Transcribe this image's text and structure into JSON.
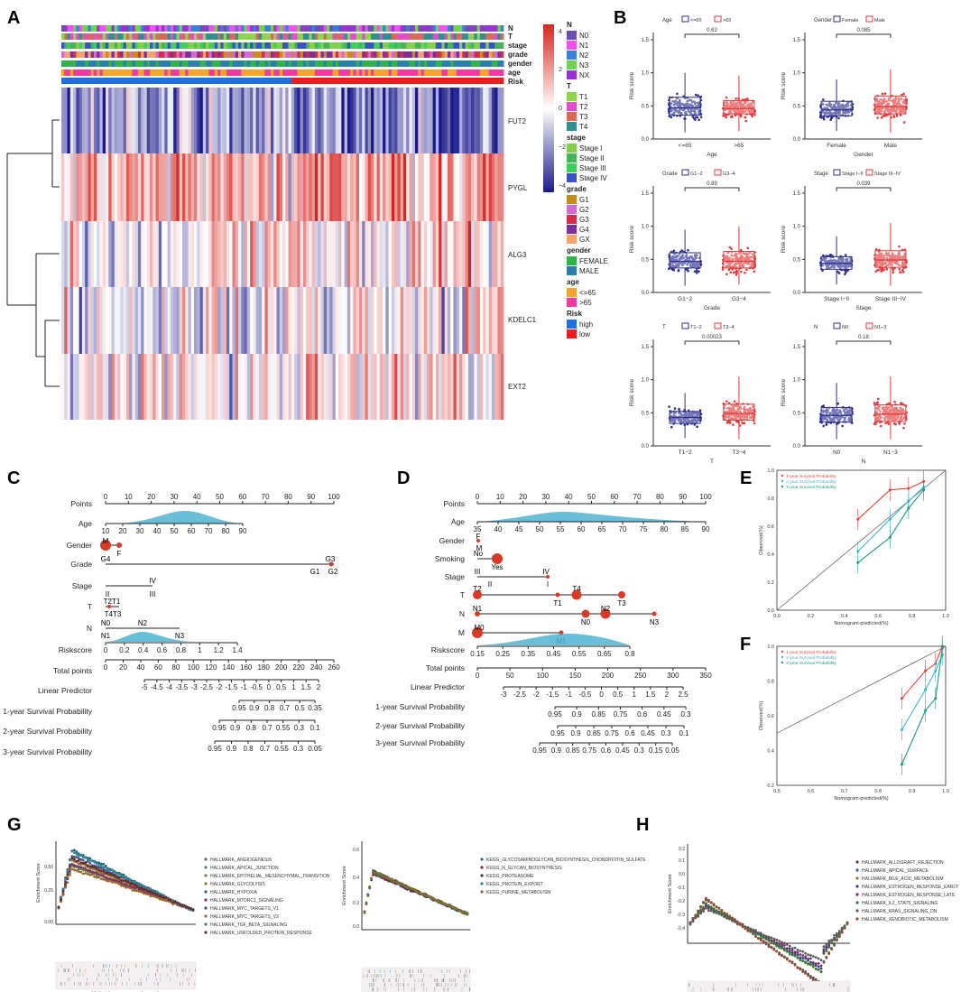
{
  "panels": {
    "A": "A",
    "B": "B",
    "C": "C",
    "D": "D",
    "E": "E",
    "F": "F",
    "G": "G",
    "H": "H"
  },
  "chart_data": [
    {
      "id": "A",
      "type": "heatmap",
      "annotation_rows": [
        "N",
        "T",
        "stage",
        "grade",
        "gender",
        "age",
        "Risk"
      ],
      "genes": [
        "FUT2",
        "PYGL",
        "ALG3",
        "KDELC1",
        "EXT2"
      ],
      "colorbar_ticks": [
        "4",
        "2",
        "0",
        "−2",
        "−4"
      ],
      "colorbar_range": [
        -4,
        4
      ],
      "legend": [
        {
          "title": "N",
          "items": [
            {
              "label": "N0",
              "color": "#6b4fb0"
            },
            {
              "label": "N1",
              "color": "#f050f0"
            },
            {
              "label": "N2",
              "color": "#3a7fd8"
            },
            {
              "label": "N3",
              "color": "#6fd34f"
            },
            {
              "label": "NX",
              "color": "#9a33d6"
            }
          ]
        },
        {
          "title": "T",
          "items": [
            {
              "label": "T1",
              "color": "#8fd34f"
            },
            {
              "label": "T2",
              "color": "#e24dcc"
            },
            {
              "label": "T3",
              "color": "#d86a5a"
            },
            {
              "label": "T4",
              "color": "#2f8f8f"
            }
          ]
        },
        {
          "title": "stage",
          "items": [
            {
              "label": "Stage I",
              "color": "#86cf4a"
            },
            {
              "label": "Stage II",
              "color": "#44b35a"
            },
            {
              "label": "Stage III",
              "color": "#3ccf5a"
            },
            {
              "label": "Stage IV",
              "color": "#3a52c8"
            }
          ]
        },
        {
          "title": "grade",
          "items": [
            {
              "label": "G1",
              "color": "#c98a1e"
            },
            {
              "label": "G2",
              "color": "#d56ad0"
            },
            {
              "label": "G3",
              "color": "#d2304a"
            },
            {
              "label": "G4",
              "color": "#7e2f9a"
            },
            {
              "label": "GX",
              "color": "#f3a46a"
            }
          ]
        },
        {
          "title": "gender",
          "items": [
            {
              "label": "FEMALE",
              "color": "#2fb34a"
            },
            {
              "label": "MALE",
              "color": "#2b7fa8"
            }
          ]
        },
        {
          "title": "age",
          "items": [
            {
              "label": "<=65",
              "color": "#f5a62a"
            },
            {
              "label": ">65",
              "color": "#f03aa0"
            }
          ]
        },
        {
          "title": "Risk",
          "items": [
            {
              "label": "high",
              "color": "#1f6fe0"
            },
            {
              "label": "low",
              "color": "#ee1c1c"
            }
          ]
        }
      ]
    },
    {
      "id": "B",
      "type": "box",
      "ylabel": "Risk score",
      "yticks": [
        "0.0",
        "0.5",
        "1.0",
        "1.5"
      ],
      "ylim": [
        0,
        1.5
      ],
      "plots": [
        {
          "title": "Age",
          "xlabel": "Age",
          "groups": [
            "<=65",
            ">65"
          ],
          "p": "0.62",
          "median": [
            0.47,
            0.46
          ],
          "q1": [
            0.36,
            0.38
          ],
          "q3": [
            0.63,
            0.58
          ],
          "lo": [
            0.1,
            0.12
          ],
          "hi": [
            1.0,
            0.96
          ]
        },
        {
          "title": "Gender",
          "xlabel": "Gender",
          "groups": [
            "Female",
            "Male"
          ],
          "p": "0.085",
          "median": [
            0.44,
            0.49
          ],
          "q1": [
            0.35,
            0.38
          ],
          "q3": [
            0.57,
            0.65
          ],
          "lo": [
            0.12,
            0.1
          ],
          "hi": [
            0.9,
            1.05
          ]
        },
        {
          "title": "Grade",
          "xlabel": "Grade",
          "groups": [
            "G1−2",
            "G3−4"
          ],
          "p": "0.89",
          "median": [
            0.47,
            0.47
          ],
          "q1": [
            0.37,
            0.37
          ],
          "q3": [
            0.6,
            0.62
          ],
          "lo": [
            0.1,
            0.12
          ],
          "hi": [
            0.95,
            1.0
          ]
        },
        {
          "title": "Stage",
          "xlabel": "Stage",
          "groups": [
            "Stage I−II",
            "Stage III−IV"
          ],
          "p": "0.039",
          "median": [
            0.44,
            0.49
          ],
          "q1": [
            0.35,
            0.38
          ],
          "q3": [
            0.54,
            0.63
          ],
          "lo": [
            0.12,
            0.1
          ],
          "hi": [
            0.85,
            1.05
          ]
        },
        {
          "title": "T",
          "xlabel": "T",
          "groups": [
            "T1−2",
            "T3−4"
          ],
          "p": "0.00023",
          "median": [
            0.43,
            0.49
          ],
          "q1": [
            0.34,
            0.39
          ],
          "q3": [
            0.52,
            0.63
          ],
          "lo": [
            0.12,
            0.1
          ],
          "hi": [
            0.8,
            1.05
          ]
        },
        {
          "title": "N",
          "xlabel": "N",
          "groups": [
            "N0",
            "N1−3"
          ],
          "p": "0.18",
          "median": [
            0.46,
            0.48
          ],
          "q1": [
            0.36,
            0.37
          ],
          "q3": [
            0.58,
            0.62
          ],
          "lo": [
            0.1,
            0.1
          ],
          "hi": [
            0.95,
            1.05
          ]
        }
      ]
    },
    {
      "id": "C",
      "type": "nomogram",
      "rows": [
        "Points",
        "Age",
        "Gender",
        "Grade",
        "Stage",
        "T",
        "N",
        "Riskscore",
        "Total points",
        "Linear Predictor",
        "1-year Survival Probability",
        "2-year Survival Probability",
        "3-year Survival Probability"
      ],
      "points_ticks": [
        "0",
        "10",
        "20",
        "30",
        "40",
        "50",
        "60",
        "70",
        "80",
        "90",
        "100"
      ],
      "age_ticks": [
        "10",
        "20",
        "30",
        "40",
        "50",
        "60",
        "70",
        "80",
        "90"
      ],
      "gender": [
        "M",
        "F"
      ],
      "grade": [
        "G4",
        "G3",
        "G1",
        "G2"
      ],
      "stage": [
        "II",
        "IV",
        "III"
      ],
      "t": [
        "T2T1",
        "T4T3"
      ],
      "n": [
        "N0",
        "N2",
        "N1",
        "N3"
      ],
      "riskscore_ticks": [
        "0",
        "0.2",
        "0.4",
        "0.6",
        "0.8",
        "1",
        "1.2",
        "1.4"
      ],
      "total_ticks": [
        "0",
        "20",
        "40",
        "60",
        "80",
        "100",
        "120",
        "140",
        "160",
        "180",
        "200",
        "220",
        "240",
        "260"
      ],
      "lp_ticks": [
        "-5",
        "-4.5",
        "-4",
        "-3.5",
        "-3",
        "-2.5",
        "-2",
        "-1.5",
        "-1",
        "-0.5",
        "0",
        "0.5",
        "1",
        "1.5",
        "2"
      ],
      "surv1": [
        "0.95",
        "0.9",
        "0.8",
        "0.7",
        "0.5",
        "0.35"
      ],
      "surv2": [
        "0.95",
        "0.9",
        "0.8",
        "0.7",
        "0.55",
        "0.3",
        "0.1"
      ],
      "surv3": [
        "0.95",
        "0.9",
        "0.8",
        "0.7",
        "0.55",
        "0.3",
        "0.05"
      ]
    },
    {
      "id": "D",
      "type": "nomogram",
      "rows": [
        "Points",
        "Age",
        "Gender",
        "Smoking",
        "Stage",
        "T",
        "N",
        "M",
        "Riskscore",
        "Total points",
        "Linear Predictor",
        "1-year Survival Probability",
        "2-year Survival Probability",
        "3-year Survival Probability"
      ],
      "points_ticks": [
        "0",
        "10",
        "20",
        "30",
        "40",
        "50",
        "60",
        "70",
        "80",
        "90",
        "100"
      ],
      "age_ticks": [
        "35",
        "40",
        "45",
        "50",
        "55",
        "60",
        "65",
        "70",
        "75",
        "80",
        "85",
        "90"
      ],
      "gender": [
        "F",
        "M"
      ],
      "smoking": [
        "No",
        "Yes"
      ],
      "stage": [
        "III",
        "IV",
        "II",
        "I"
      ],
      "t": [
        "T2",
        "T4",
        "T1",
        "T3"
      ],
      "n": [
        "N1",
        "N0",
        "N2",
        "N3"
      ],
      "m": [
        "M0",
        "M1"
      ],
      "riskscore_ticks": [
        "0.15",
        "0.25",
        "0.35",
        "0.45",
        "0.55",
        "0.65",
        "0.8"
      ],
      "total_ticks": [
        "0",
        "50",
        "100",
        "150",
        "200",
        "250",
        "300",
        "350"
      ],
      "lp_ticks": [
        "-3",
        "-2.5",
        "-2",
        "-1.5",
        "-1",
        "-0.5",
        "0",
        "0.5",
        "1",
        "1.5",
        "2",
        "2.5"
      ],
      "surv1": [
        "0.95",
        "0.9",
        "0.85",
        "0.75",
        "0.6",
        "0.45",
        "0.3"
      ],
      "surv2": [
        "0.95",
        "0.9",
        "0.85",
        "0.75",
        "0.6",
        "0.45",
        "0.3",
        "0.1"
      ],
      "surv3": [
        "0.95",
        "0.9",
        "0.85",
        "0.75",
        "0.6",
        "0.45",
        "0.3",
        "0.15",
        "0.05"
      ]
    },
    {
      "id": "E",
      "type": "line",
      "xlabel": "Nomogram-predicted(%)",
      "ylabel": "Observed(%)",
      "xticks": [
        "0.0",
        "0.2",
        "0.4",
        "0.6",
        "0.8",
        "1.0"
      ],
      "yticks": [
        "0.0",
        "0.2",
        "0.4",
        "0.6",
        "0.8",
        "1.0"
      ],
      "xlim": [
        0,
        1
      ],
      "ylim": [
        0,
        1
      ],
      "series": [
        {
          "name": "1-year Survival Probability",
          "color": "#e8453c",
          "x": [
            0.48,
            0.67,
            0.78,
            0.87
          ],
          "y": [
            0.65,
            0.86,
            0.87,
            0.92
          ]
        },
        {
          "name": "2-year Survival Probability",
          "color": "#3fb6d8",
          "x": [
            0.48,
            0.67,
            0.78,
            0.87
          ],
          "y": [
            0.42,
            0.65,
            0.78,
            0.88
          ]
        },
        {
          "name": "3-year Survival Probability",
          "color": "#1a9a7e",
          "x": [
            0.48,
            0.67,
            0.78,
            0.87
          ],
          "y": [
            0.34,
            0.52,
            0.73,
            0.86
          ]
        }
      ]
    },
    {
      "id": "F",
      "type": "line",
      "xlabel": "Nomogram-predicted(%)",
      "ylabel": "Observed(%)",
      "xticks": [
        "0.5",
        "0.6",
        "0.7",
        "0.8",
        "0.9",
        "1.0"
      ],
      "yticks": [
        "0.2",
        "0.4",
        "0.6",
        "0.8",
        "1.0"
      ],
      "xlim": [
        0.5,
        1
      ],
      "ylim": [
        0.2,
        1
      ],
      "series": [
        {
          "name": "1-year Survival Probability",
          "color": "#e8453c",
          "x": [
            0.87,
            0.94,
            0.97,
            0.99
          ],
          "y": [
            0.7,
            0.86,
            0.9,
            1.0
          ]
        },
        {
          "name": "2-year Survival Probability",
          "color": "#3fb6d8",
          "x": [
            0.87,
            0.94,
            0.97,
            0.99
          ],
          "y": [
            0.52,
            0.75,
            0.86,
            0.95
          ]
        },
        {
          "name": "3-year Survival Probability",
          "color": "#1a9a7e",
          "x": [
            0.87,
            0.94,
            0.97,
            0.99
          ],
          "y": [
            0.32,
            0.63,
            0.7,
            0.99
          ]
        }
      ]
    },
    {
      "id": "G",
      "type": "line",
      "ylabel": "Enrichment Score",
      "xlabel": "High risk<--------------->Low risk",
      "left_yticks": [
        "0.50",
        "0.25",
        "0.00"
      ],
      "left_series": [
        "HALLMARK_ANGIOGENESIS",
        "HALLMARK_APICAL_JUNCTION",
        "HALLMARK_EPITHELIAL_MESENCHYMAL_TRANSITION",
        "HALLMARK_GLYCOLYSIS",
        "HALLMARK_HYPOXIA",
        "HALLMARK_MTORC1_SIGNALING",
        "HALLMARK_MYC_TARGETS_V1",
        "HALLMARK_MYC_TARGETS_V2",
        "HALLMARK_TGF_BETA_SIGNALING",
        "HALLMARK_UNFOLDED_PROTEIN_RESPONSE"
      ],
      "left_colors": [
        "#7a5c4a",
        "#3a8a6a",
        "#5a8a3a",
        "#8a7a2a",
        "#2a5a8a",
        "#8a2a6a",
        "#4a4a8a",
        "#9a6a2a",
        "#2a8a8a",
        "#6a2a2a"
      ],
      "right_yticks": [
        "0.6",
        "0.4",
        "0.2",
        "0.0"
      ],
      "right_series": [
        "KEGG_GLYCOSAMINOGLYCAN_BIOSYNTHESIS_CHONDROITIN_SULFATE",
        "KEGG_N_GLYCAN_BIOSYNTHESIS",
        "KEGG_PROTEASOME",
        "KEGG_PROTEIN_EXPORT",
        "KEGG_PURINE_METABOLISM"
      ],
      "right_colors": [
        "#2a6a8a",
        "#6a2a4a",
        "#3a3a3a",
        "#2a8a6a",
        "#8a6a2a"
      ]
    },
    {
      "id": "H",
      "type": "line",
      "ylabel": "Enrichment Score",
      "xlabel": "High risk<--------------->Low risk",
      "yticks": [
        "0.2",
        "0.1",
        "0.0",
        "-0.1",
        "-0.2",
        "-0.3",
        "-0.4"
      ],
      "series": [
        "HALLMARK_ALLOGRAFT_REJECTION",
        "HALLMARK_APICAL_SURFACE",
        "HALLMARK_BILE_ACID_METABOLISM",
        "HALLMARK_ESTROGEN_RESPONSE_EARLY",
        "HALLMARK_ESTROGEN_RESPONSE_LATE",
        "HALLMARK_IL2_STAT5_SIGNALING",
        "HALLMARK_KRAS_SIGNALING_DN",
        "HALLMARK_XENOBIOTIC_METABOLISM"
      ],
      "colors": [
        "#6a3a2a",
        "#2a6a7a",
        "#8a7a2a",
        "#3a3a8a",
        "#7a2a6a",
        "#2a7a3a",
        "#5a5a5a",
        "#9a4a2a"
      ]
    }
  ]
}
